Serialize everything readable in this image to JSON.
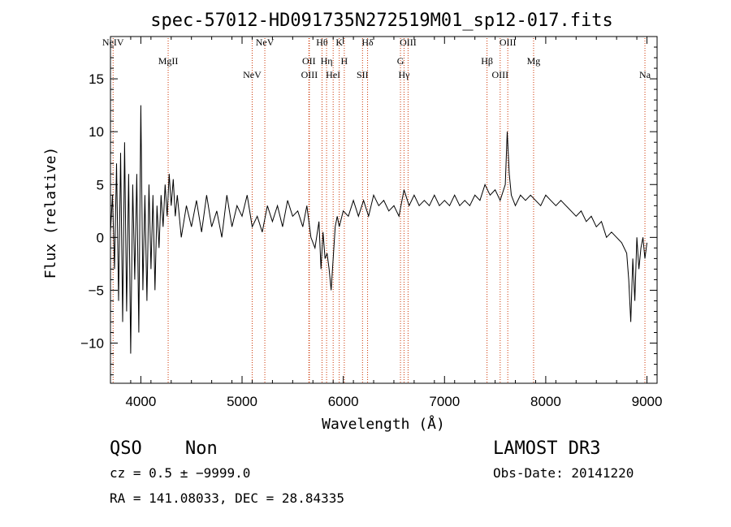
{
  "chart_data": {
    "type": "line",
    "title": "spec-57012-HD091735N272519M01_sp12-017.fits",
    "xlabel": "Wavelength (Å)",
    "ylabel": "Flux (relative)",
    "xlim": [
      3700,
      9100
    ],
    "ylim": [
      -13.8,
      19
    ],
    "xticks": [
      4000,
      5000,
      6000,
      7000,
      8000,
      9000
    ],
    "xtick_labels": [
      "4000",
      "5000",
      "6000",
      "7000",
      "8000",
      "9000"
    ],
    "yticks": [
      -10,
      -5,
      0,
      5,
      10,
      15
    ],
    "ytick_labels": [
      "−10",
      "−5",
      "0",
      "5",
      "10",
      "15"
    ],
    "line_color": "#000000",
    "marker_color": "#cc3300",
    "grid": false,
    "spectral_lines": [
      {
        "label": "NeIV",
        "wavelength": 3726
      },
      {
        "label": "MgII",
        "wavelength": 4270
      },
      {
        "label": "NeV",
        "wavelength": 5100
      },
      {
        "label": "NeV",
        "wavelength": 5225
      },
      {
        "label": "OII",
        "wavelength": 5660
      },
      {
        "label": "OIII",
        "wavelength": 5665
      },
      {
        "label": "Hθ",
        "wavelength": 5790
      },
      {
        "label": "Hη",
        "wavelength": 5835
      },
      {
        "label": "HeI",
        "wavelength": 5900
      },
      {
        "label": "K",
        "wavelength": 5960
      },
      {
        "label": "H",
        "wavelength": 6010
      },
      {
        "label": "SII",
        "wavelength": 6190
      },
      {
        "label": "Hδ",
        "wavelength": 6240
      },
      {
        "label": "G",
        "wavelength": 6565
      },
      {
        "label": "Hγ",
        "wavelength": 6600
      },
      {
        "label": "OIII",
        "wavelength": 6640
      },
      {
        "label": "Hβ",
        "wavelength": 7420
      },
      {
        "label": "OIII",
        "wavelength": 7550
      },
      {
        "label": "OIII",
        "wavelength": 7625
      },
      {
        "label": "Mg",
        "wavelength": 7880
      },
      {
        "label": "Na",
        "wavelength": 8980
      }
    ],
    "series": [
      {
        "values": [
          [
            3700,
            0.5
          ],
          [
            3720,
            4
          ],
          [
            3740,
            -3
          ],
          [
            3760,
            7
          ],
          [
            3780,
            -6
          ],
          [
            3800,
            8
          ],
          [
            3820,
            -8
          ],
          [
            3840,
            9
          ],
          [
            3860,
            -7
          ],
          [
            3880,
            6
          ],
          [
            3900,
            -11
          ],
          [
            3920,
            5
          ],
          [
            3940,
            -4
          ],
          [
            3960,
            6
          ],
          [
            3980,
            -9
          ],
          [
            4000,
            12.5
          ],
          [
            4020,
            -5
          ],
          [
            4040,
            4
          ],
          [
            4060,
            -6
          ],
          [
            4080,
            5
          ],
          [
            4100,
            -3
          ],
          [
            4120,
            4
          ],
          [
            4140,
            -5
          ],
          [
            4160,
            3
          ],
          [
            4180,
            -1
          ],
          [
            4200,
            4
          ],
          [
            4220,
            1
          ],
          [
            4240,
            5
          ],
          [
            4260,
            2
          ],
          [
            4280,
            6
          ],
          [
            4300,
            3
          ],
          [
            4320,
            5.5
          ],
          [
            4340,
            2
          ],
          [
            4360,
            4
          ],
          [
            4400,
            0
          ],
          [
            4450,
            3
          ],
          [
            4500,
            1
          ],
          [
            4550,
            3.5
          ],
          [
            4600,
            0.5
          ],
          [
            4650,
            4
          ],
          [
            4700,
            1
          ],
          [
            4750,
            2.5
          ],
          [
            4800,
            0
          ],
          [
            4850,
            4
          ],
          [
            4900,
            1
          ],
          [
            4950,
            3
          ],
          [
            5000,
            2
          ],
          [
            5050,
            4
          ],
          [
            5100,
            1
          ],
          [
            5150,
            2
          ],
          [
            5200,
            0.5
          ],
          [
            5250,
            3
          ],
          [
            5300,
            1.5
          ],
          [
            5350,
            3
          ],
          [
            5400,
            1
          ],
          [
            5450,
            3.5
          ],
          [
            5500,
            2
          ],
          [
            5550,
            2.5
          ],
          [
            5600,
            1
          ],
          [
            5640,
            3
          ],
          [
            5680,
            0
          ],
          [
            5720,
            -1
          ],
          [
            5760,
            1.5
          ],
          [
            5780,
            -3
          ],
          [
            5800,
            0.5
          ],
          [
            5820,
            -2
          ],
          [
            5840,
            -1.5
          ],
          [
            5860,
            -3
          ],
          [
            5880,
            -5
          ],
          [
            5900,
            -2
          ],
          [
            5920,
            1
          ],
          [
            5940,
            2
          ],
          [
            5960,
            1
          ],
          [
            6000,
            2.5
          ],
          [
            6050,
            2
          ],
          [
            6100,
            3.5
          ],
          [
            6150,
            2
          ],
          [
            6200,
            3.5
          ],
          [
            6250,
            2
          ],
          [
            6300,
            4
          ],
          [
            6350,
            3
          ],
          [
            6400,
            3.5
          ],
          [
            6450,
            2.5
          ],
          [
            6500,
            3
          ],
          [
            6550,
            2
          ],
          [
            6600,
            4.5
          ],
          [
            6650,
            3
          ],
          [
            6700,
            4
          ],
          [
            6750,
            3
          ],
          [
            6800,
            3.5
          ],
          [
            6850,
            3
          ],
          [
            6900,
            4
          ],
          [
            6950,
            3
          ],
          [
            7000,
            3.5
          ],
          [
            7050,
            3
          ],
          [
            7100,
            4
          ],
          [
            7150,
            3
          ],
          [
            7200,
            3.5
          ],
          [
            7250,
            3
          ],
          [
            7300,
            4
          ],
          [
            7350,
            3.5
          ],
          [
            7400,
            5
          ],
          [
            7450,
            4
          ],
          [
            7500,
            4.5
          ],
          [
            7550,
            3.5
          ],
          [
            7600,
            5
          ],
          [
            7620,
            10
          ],
          [
            7640,
            6
          ],
          [
            7660,
            4
          ],
          [
            7700,
            3
          ],
          [
            7750,
            4
          ],
          [
            7800,
            3.5
          ],
          [
            7850,
            4
          ],
          [
            7900,
            3.5
          ],
          [
            7950,
            3
          ],
          [
            8000,
            4
          ],
          [
            8050,
            3.5
          ],
          [
            8100,
            3
          ],
          [
            8150,
            3.5
          ],
          [
            8200,
            3
          ],
          [
            8250,
            2.5
          ],
          [
            8300,
            2
          ],
          [
            8350,
            2.5
          ],
          [
            8400,
            1.5
          ],
          [
            8450,
            2
          ],
          [
            8500,
            1
          ],
          [
            8550,
            1.5
          ],
          [
            8600,
            0
          ],
          [
            8650,
            0.5
          ],
          [
            8700,
            0
          ],
          [
            8750,
            -0.5
          ],
          [
            8800,
            -1.5
          ],
          [
            8820,
            -4
          ],
          [
            8840,
            -8
          ],
          [
            8860,
            -2
          ],
          [
            8880,
            -6
          ],
          [
            8900,
            0
          ],
          [
            8920,
            -3
          ],
          [
            8940,
            -1
          ],
          [
            8960,
            0
          ],
          [
            8980,
            -2
          ],
          [
            9000,
            -0.5
          ]
        ]
      }
    ]
  },
  "footer": {
    "object_class": "QSO",
    "subclass": "Non",
    "survey": "LAMOST DR3",
    "cz": "cz = 0.5 ± −9999.0",
    "obs_date": "Obs-Date: 20141220",
    "coords": "RA = 141.08033, DEC =  28.84335"
  }
}
